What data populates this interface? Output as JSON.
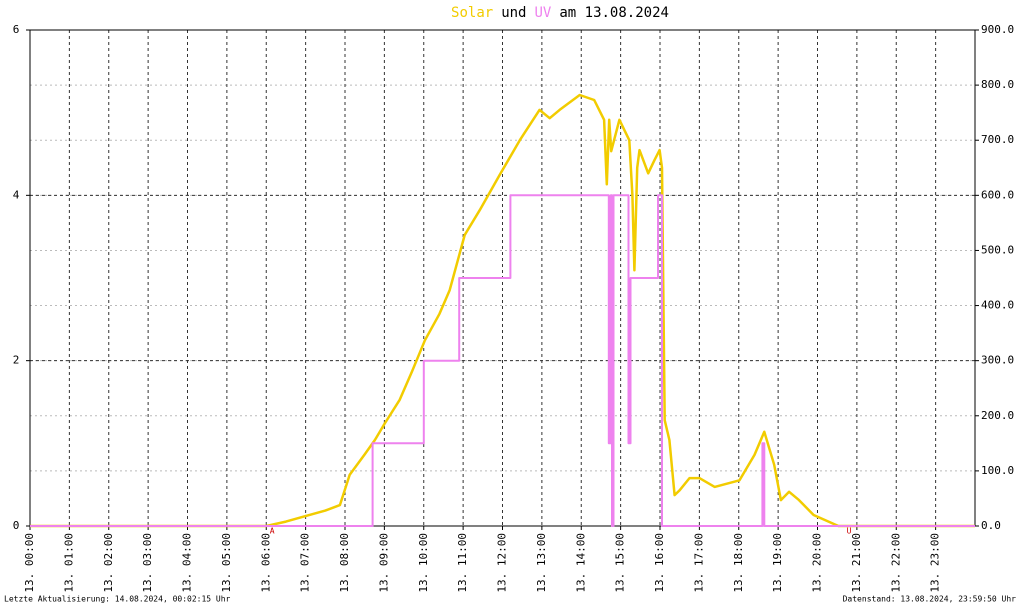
{
  "chart_data": {
    "type": "line",
    "title": [
      "Solar",
      "und",
      "UV",
      "am 13.08.2024"
    ],
    "xlim": [
      0,
      24
    ],
    "xticks": [
      {
        "value": 0,
        "label": "13. 00:00"
      },
      {
        "value": 1,
        "label": "13. 01:00"
      },
      {
        "value": 2,
        "label": "13. 02:00"
      },
      {
        "value": 3,
        "label": "13. 03:00"
      },
      {
        "value": 4,
        "label": "13. 04:00"
      },
      {
        "value": 5,
        "label": "13. 05:00"
      },
      {
        "value": 6,
        "label": "13. 06:00"
      },
      {
        "value": 7,
        "label": "13. 07:00"
      },
      {
        "value": 8,
        "label": "13. 08:00"
      },
      {
        "value": 9,
        "label": "13. 09:00"
      },
      {
        "value": 10,
        "label": "13. 10:00"
      },
      {
        "value": 11,
        "label": "13. 11:00"
      },
      {
        "value": 12,
        "label": "13. 12:00"
      },
      {
        "value": 13,
        "label": "13. 13:00"
      },
      {
        "value": 14,
        "label": "13. 14:00"
      },
      {
        "value": 15,
        "label": "13. 15:00"
      },
      {
        "value": 16,
        "label": "13. 16:00"
      },
      {
        "value": 17,
        "label": "13. 17:00"
      },
      {
        "value": 18,
        "label": "13. 18:00"
      },
      {
        "value": 19,
        "label": "13. 19:00"
      },
      {
        "value": 20,
        "label": "13. 20:00"
      },
      {
        "value": 21,
        "label": "13. 21:00"
      },
      {
        "value": 22,
        "label": "13. 22:00"
      },
      {
        "value": 23,
        "label": "13. 23:00"
      }
    ],
    "ylim": [
      0,
      6
    ],
    "yticks": [
      0,
      2,
      4,
      6
    ],
    "y2lim": [
      0,
      900
    ],
    "y2ticks": [
      {
        "value": 0,
        "label": "0.0"
      },
      {
        "value": 100,
        "label": "100.0"
      },
      {
        "value": 200,
        "label": "200.0"
      },
      {
        "value": 300,
        "label": "300.0"
      },
      {
        "value": 400,
        "label": "400.0"
      },
      {
        "value": 500,
        "label": "500.0"
      },
      {
        "value": 600,
        "label": "600.0"
      },
      {
        "value": 700,
        "label": "700.0"
      },
      {
        "value": 800,
        "label": "800.0"
      },
      {
        "value": 900,
        "label": "900.0"
      }
    ],
    "grid": true,
    "series": [
      {
        "name": "Solar",
        "color": "#f2cc00",
        "axis": "y2",
        "x": [
          0,
          6.0,
          6.5,
          6.85,
          7.5,
          7.87,
          8.12,
          8.5,
          8.76,
          9.0,
          9.39,
          9.7,
          10.03,
          10.4,
          10.66,
          11.04,
          11.42,
          11.93,
          12.44,
          12.94,
          13.2,
          13.45,
          13.96,
          14.33,
          14.58,
          14.65,
          14.71,
          14.76,
          14.97,
          15.22,
          15.3,
          15.35,
          15.42,
          15.48,
          15.7,
          15.86,
          15.99,
          16.05,
          16.12,
          16.24,
          16.37,
          16.5,
          16.75,
          17.0,
          17.39,
          18.02,
          18.4,
          18.65,
          18.9,
          19.07,
          19.28,
          19.53,
          19.9,
          20.53,
          24
        ],
        "values": [
          0,
          0,
          8,
          15,
          28,
          38,
          93,
          130,
          156,
          185,
          229,
          280,
          337,
          385,
          428,
          528,
          573,
          637,
          700,
          755,
          740,
          755,
          782,
          773,
          737,
          620,
          737,
          680,
          737,
          700,
          600,
          464,
          650,
          682,
          640,
          664,
          682,
          650,
          192,
          156,
          56,
          65,
          87,
          87,
          71,
          83,
          129,
          171,
          111,
          47,
          62,
          47,
          20,
          0,
          0
        ]
      },
      {
        "name": "UV",
        "color": "#ee82ee",
        "axis": "y",
        "x": [
          0,
          8.7,
          8.7,
          10.0,
          10.0,
          10.9,
          10.9,
          12.2,
          12.2,
          14.7,
          14.7,
          14.75,
          14.75,
          14.78,
          14.78,
          14.82,
          14.82,
          15.2,
          15.2,
          15.25,
          15.25,
          15.95,
          15.95,
          16.05,
          16.05,
          18.6,
          18.6,
          18.65,
          18.65,
          24
        ],
        "values": [
          0,
          0,
          1,
          1,
          2,
          2,
          3,
          3,
          4,
          4,
          1,
          1,
          4,
          4,
          0,
          0,
          4,
          4,
          1,
          1,
          3,
          3,
          4,
          4,
          0,
          0,
          1,
          1,
          0,
          0
        ]
      }
    ],
    "annotations": [
      {
        "text": "A",
        "x": 6.15
      },
      {
        "text": "U",
        "x": 20.8
      }
    ]
  },
  "footer": {
    "left": "Letzte Aktualisierung: 14.08.2024, 00:02:15 Uhr",
    "right": "Datenstand: 13.08.2024, 23:59:50 Uhr"
  }
}
